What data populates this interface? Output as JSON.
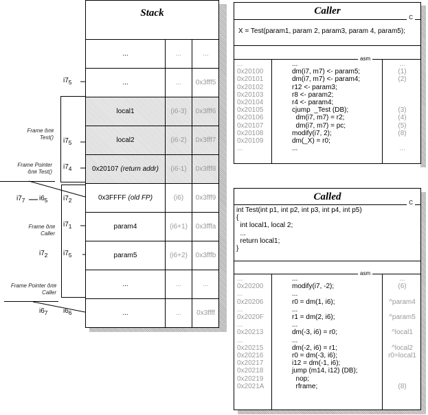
{
  "stack": {
    "title": "Stack",
    "rows": [
      {
        "value": "...",
        "offset": "...",
        "address": "..."
      },
      {
        "value": "...",
        "offset": "...",
        "address": "0x3fff5"
      },
      {
        "value": "local1",
        "offset": "(i6-3)",
        "address": "0x3fff6"
      },
      {
        "value": "local2",
        "offset": "(i6-2)",
        "address": "0x3fff7"
      },
      {
        "value": "0x20107",
        "value_note": "(return addr)",
        "offset": "(i6-1)",
        "address": "0x3fff8"
      },
      {
        "value": "0x3FFFF",
        "value_note": "(old FP)",
        "offset": "(i6)",
        "address": "0x3fff9"
      },
      {
        "value": "param4",
        "offset": "(i6+1)",
        "address": "0x3fffa"
      },
      {
        "value": "param5",
        "offset": "(i6+2)",
        "address": "0x3fffb"
      },
      {
        "value": "...",
        "offset": "...",
        "address": "..."
      },
      {
        "value": "...",
        "offset": "...",
        "address": "0x3ffff"
      }
    ]
  },
  "pointers": {
    "p1": "i7",
    "p1s": "5",
    "p2": "i7",
    "p2s": "5",
    "p3": "i7",
    "p3s": "4",
    "p4": "i7",
    "p4s": "2",
    "p5": "i7",
    "p5s": "1",
    "p6": "i7",
    "p6s": "5",
    "p7": "i6",
    "p7s": "6",
    "l1": "i7",
    "l1s": "7",
    "l1b": "i6",
    "l1bs": "5",
    "l2": "i7",
    "l2s": "2",
    "l3": "i6",
    "l3s": "7"
  },
  "notes": {
    "frame_test": "Frame для Test()",
    "fp_test": "Frame Pointer для Test()",
    "frame_caller": "Frame для Caller",
    "fp_caller": "Frame Pointer для Caller"
  },
  "caller": {
    "title": "Caller",
    "lang": "C",
    "asm_label": "asm",
    "code": "X = Test(param1, param 2, param3, param 4, param5);",
    "asm": [
      {
        "addr": "...",
        "instr": "...",
        "note": "..."
      },
      {
        "addr": "0x20100",
        "instr": "dm(i7, m7) <- param5;",
        "note": "(1)"
      },
      {
        "addr": "0x20101",
        "instr": "dm(i7, m7) <- param4;",
        "note": "(2)"
      },
      {
        "addr": "0x20102",
        "instr": "r12 <- param3;",
        "note": ""
      },
      {
        "addr": "0x20103",
        "instr": "r8 <- param2;",
        "note": ""
      },
      {
        "addr": "0x20104",
        "instr": "r4 <- param4;",
        "note": ""
      },
      {
        "addr": "0x20105",
        "instr": "cjump  _Test (DB);",
        "note": "(3)"
      },
      {
        "addr": "0x20106",
        "instr": "  dm(i7, m7) = r2;",
        "note": "(4)"
      },
      {
        "addr": "0x20107",
        "instr": "  dm(i7, m7) = pc;",
        "note": "(5)"
      },
      {
        "addr": "0x20108",
        "instr": "modify(i7, 2);",
        "note": "(8)"
      },
      {
        "addr": "0x20109",
        "instr": "dm(_X) = r0;",
        "note": ""
      },
      {
        "addr": "...",
        "instr": "...",
        "note": "..."
      }
    ]
  },
  "called": {
    "title": "Called",
    "lang": "C",
    "asm_label": "asm",
    "code": "int Test(int p1, int p2, int p3, int p4, int p5)\n{\n  int local1, local 2;\n  ...\n  return local1;\n}",
    "asm": [
      {
        "addr": "...",
        "instr": "...",
        "note": "..."
      },
      {
        "addr": "0x20200",
        "instr": "modify(i7, -2);",
        "note": "(6)"
      },
      {
        "addr": "...",
        "instr": "...",
        "note": ""
      },
      {
        "addr": "0x20206",
        "instr": "r0 = dm(1, i6);",
        "note": "^param4"
      },
      {
        "addr": "...",
        "instr": "...",
        "note": ""
      },
      {
        "addr": "0x2020F",
        "instr": "r1 = dm(2, i6);",
        "note": "^param5"
      },
      {
        "addr": "...",
        "instr": "...",
        "note": ""
      },
      {
        "addr": "0x20213",
        "instr": "dm(-3, i6) = r0;",
        "note": "^local1"
      },
      {
        "addr": "...",
        "instr": "...",
        "note": ""
      },
      {
        "addr": "0x20215",
        "instr": "dm(-2, i6) = r1;",
        "note": "^local2"
      },
      {
        "addr": "0x20216",
        "instr": "r0 = dm(-3, i6);",
        "note": "r0=local1"
      },
      {
        "addr": "0x20217",
        "instr": "i12 = dm(-1, i6);",
        "note": ""
      },
      {
        "addr": "0x20218",
        "instr": "jump (m14, i12) (DB);",
        "note": ""
      },
      {
        "addr": "0x20219",
        "instr": "  nop;",
        "note": ""
      },
      {
        "addr": "0x2021A",
        "instr": "  rframe;",
        "note": "(8)"
      }
    ]
  }
}
